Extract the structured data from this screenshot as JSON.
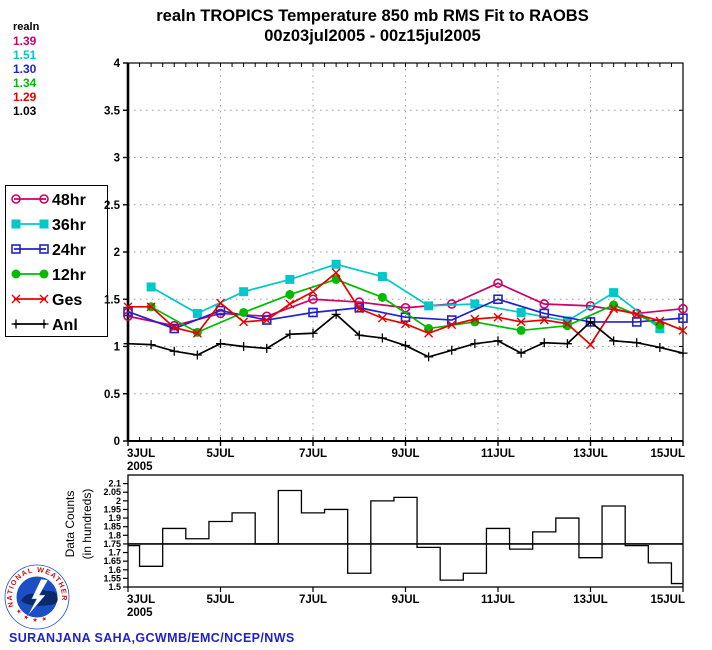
{
  "header": {
    "title_line1": "realn TROPICS Temperature 850 mb RMS Fit to RAOBS",
    "title_line2": "00z03jul2005 - 00z15jul2005",
    "stats_label": "realn",
    "stats": [
      {
        "series": "48hr",
        "value": "1.39",
        "color": "#cc0066"
      },
      {
        "series": "36hr",
        "value": "1.51",
        "color": "#00c8c8"
      },
      {
        "series": "24hr",
        "value": "1.30",
        "color": "#2222cc"
      },
      {
        "series": "12hr",
        "value": "1.34",
        "color": "#00bb00"
      },
      {
        "series": "Ges",
        "value": "1.29",
        "color": "#e80000"
      },
      {
        "series": "Anl",
        "value": "1.03",
        "color": "#000000"
      }
    ]
  },
  "footer": {
    "credit": "SURANJANA SAHA,GCWMB/EMC/NCEP/NWS",
    "logo_ring_text": "NATIONAL WEATHER SERVICE",
    "logo_stars": "★ ★ ★ ★"
  },
  "chart_data": [
    {
      "type": "line",
      "title": "realn TROPICS Temperature 850 mb RMS Fit to RAOBS",
      "subtitle": "00z03jul2005 - 00z15jul2005",
      "x_unit": "days since 00z 03 Jul 2005 (points every 12h)",
      "xlim": [
        0,
        12
      ],
      "ylim": [
        0,
        4
      ],
      "yticks": [
        0,
        0.5,
        1,
        1.5,
        2,
        2.5,
        3,
        3.5,
        4
      ],
      "xticks": [
        {
          "t": 0,
          "label": "3JUL",
          "label2": "2005",
          "anchor": "start"
        },
        {
          "t": 2,
          "label": "5JUL",
          "anchor": "middle"
        },
        {
          "t": 4,
          "label": "7JUL",
          "anchor": "middle"
        },
        {
          "t": 6,
          "label": "9JUL",
          "anchor": "middle"
        },
        {
          "t": 8,
          "label": "11JUL",
          "anchor": "middle"
        },
        {
          "t": 10,
          "label": "13JUL",
          "anchor": "middle"
        },
        {
          "t": 12,
          "label": "15JUL",
          "anchor": "end"
        }
      ],
      "vgrid_t": [
        2,
        4,
        6,
        8,
        10
      ],
      "grid": "dotted",
      "legend_position": "left-box",
      "series": [
        {
          "name": "48hr",
          "color": "#cc0066",
          "marker": "circle-open",
          "t": [
            0,
            1,
            2,
            3,
            4,
            5,
            6,
            7,
            8,
            9,
            10,
            11,
            12
          ],
          "values": [
            1.32,
            1.22,
            1.35,
            1.32,
            1.5,
            1.47,
            1.41,
            1.45,
            1.67,
            1.45,
            1.43,
            1.35,
            1.4
          ]
        },
        {
          "name": "36hr",
          "color": "#00c8c8",
          "marker": "square-filled",
          "t": [
            0.5,
            1.5,
            2.5,
            3.5,
            4.5,
            5.5,
            6.5,
            7.5,
            8.5,
            9.5,
            10.5,
            11.5
          ],
          "values": [
            1.63,
            1.35,
            1.58,
            1.71,
            1.87,
            1.74,
            1.43,
            1.45,
            1.36,
            1.27,
            1.57,
            1.19
          ]
        },
        {
          "name": "24hr",
          "color": "#2222cc",
          "marker": "square-open",
          "t": [
            0,
            1,
            2,
            3,
            4,
            5,
            6,
            7,
            8,
            9,
            10,
            11,
            12
          ],
          "values": [
            1.37,
            1.19,
            1.38,
            1.28,
            1.36,
            1.41,
            1.31,
            1.28,
            1.5,
            1.35,
            1.26,
            1.26,
            1.3
          ]
        },
        {
          "name": "12hr",
          "color": "#00bb00",
          "marker": "circle-filled",
          "t": [
            0.5,
            1.5,
            2.5,
            3.5,
            4.5,
            5.5,
            6.5,
            7.5,
            8.5,
            9.5,
            10.5,
            11.5
          ],
          "values": [
            1.42,
            1.15,
            1.36,
            1.55,
            1.71,
            1.52,
            1.19,
            1.26,
            1.17,
            1.22,
            1.44,
            1.23
          ]
        },
        {
          "name": "Ges",
          "color": "#e80000",
          "marker": "x",
          "t": [
            0,
            0.5,
            1,
            1.5,
            2,
            2.5,
            3,
            3.5,
            4,
            4.5,
            5,
            5.5,
            6,
            6.5,
            7,
            7.5,
            8,
            8.5,
            9,
            9.5,
            10,
            10.5,
            11,
            11.5,
            12
          ],
          "values": [
            1.42,
            1.42,
            1.2,
            1.14,
            1.46,
            1.26,
            1.28,
            1.45,
            1.58,
            1.78,
            1.4,
            1.3,
            1.24,
            1.14,
            1.23,
            1.29,
            1.31,
            1.26,
            1.28,
            1.24,
            1.02,
            1.4,
            1.34,
            1.27,
            1.17
          ]
        },
        {
          "name": "Anl",
          "color": "#000000",
          "marker": "plus",
          "t": [
            0,
            0.5,
            1,
            1.5,
            2,
            2.5,
            3,
            3.5,
            4,
            4.5,
            5,
            5.5,
            6,
            6.5,
            7,
            7.5,
            8,
            8.5,
            9,
            9.5,
            10,
            10.5,
            11,
            11.5,
            12
          ],
          "values": [
            1.03,
            1.02,
            0.95,
            0.91,
            1.03,
            1.0,
            0.98,
            1.13,
            1.14,
            1.34,
            1.12,
            1.09,
            1.01,
            0.89,
            0.96,
            1.03,
            1.06,
            0.93,
            1.04,
            1.03,
            1.26,
            1.06,
            1.04,
            0.99,
            0.93
          ]
        }
      ]
    },
    {
      "type": "bar",
      "ylabel_line1": "Data Counts",
      "ylabel_line2": "(in hundreds)",
      "xlim": [
        0,
        12
      ],
      "ylim": [
        1.5,
        2.15
      ],
      "baseline": 1.75,
      "yticks": [
        1.5,
        1.55,
        1.6,
        1.65,
        1.7,
        1.75,
        1.8,
        1.85,
        1.9,
        1.95,
        2,
        2.05,
        2.1
      ],
      "xticks": [
        {
          "t": 0,
          "label": "3JUL",
          "label2": "2005",
          "anchor": "start"
        },
        {
          "t": 2,
          "label": "5JUL",
          "anchor": "middle"
        },
        {
          "t": 4,
          "label": "7JUL",
          "anchor": "middle"
        },
        {
          "t": 6,
          "label": "9JUL",
          "anchor": "middle"
        },
        {
          "t": 8,
          "label": "11JUL",
          "anchor": "middle"
        },
        {
          "t": 10,
          "label": "13JUL",
          "anchor": "middle"
        },
        {
          "t": 12,
          "label": "15JUL",
          "anchor": "end"
        }
      ],
      "bar_width_days": 0.5,
      "t": [
        0,
        0.5,
        1,
        1.5,
        2,
        2.5,
        3,
        3.5,
        4,
        4.5,
        5,
        5.5,
        6,
        6.5,
        7,
        7.5,
        8,
        8.5,
        9,
        9.5,
        10,
        10.5,
        11,
        11.5,
        12
      ],
      "values": [
        1.74,
        1.62,
        1.84,
        1.78,
        1.88,
        1.93,
        1.75,
        2.06,
        1.93,
        1.95,
        1.58,
        2.0,
        2.02,
        1.73,
        1.54,
        1.58,
        1.84,
        1.72,
        1.82,
        1.9,
        1.67,
        1.97,
        1.74,
        1.64,
        1.52
      ]
    }
  ]
}
